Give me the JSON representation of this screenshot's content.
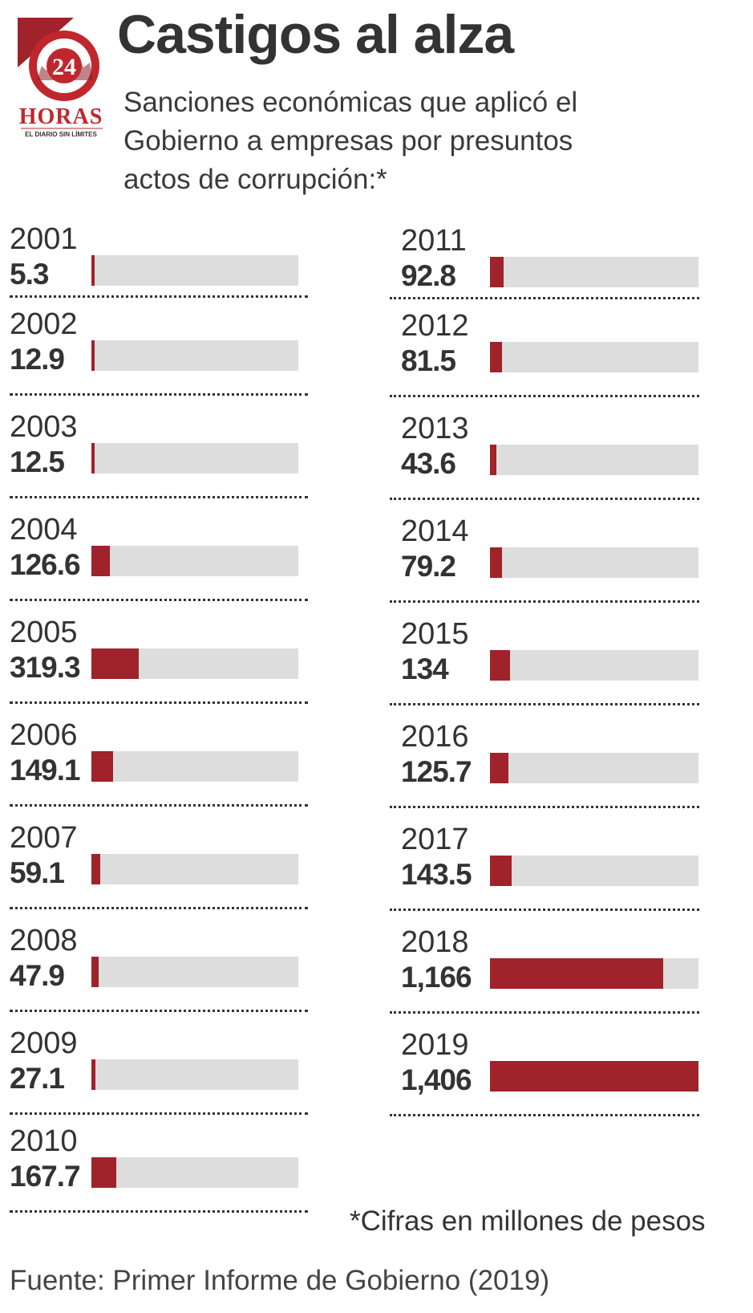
{
  "logo": {
    "number": "24",
    "name": "HORAS",
    "tagline": "EL DIARIO SIN LÍMITES",
    "brand_color": "#c0272d"
  },
  "title": "Castigos al alza",
  "subtitle": "Sanciones económicas que aplicó el Gobierno a empresas por presuntos actos de corrupción:*",
  "colors": {
    "bar": "#a0222a",
    "track": "#dddddd",
    "text": "#333333"
  },
  "chart_data": {
    "type": "bar",
    "orientation": "horizontal",
    "categories": [
      "2001",
      "2002",
      "2003",
      "2004",
      "2005",
      "2006",
      "2007",
      "2008",
      "2009",
      "2010",
      "2011",
      "2012",
      "2013",
      "2014",
      "2015",
      "2016",
      "2017",
      "2018",
      "2019"
    ],
    "values": [
      5.3,
      12.9,
      12.5,
      126.6,
      319.3,
      149.1,
      59.1,
      47.9,
      27.1,
      167.7,
      92.8,
      81.5,
      43.6,
      79.2,
      134,
      125.7,
      143.5,
      1166,
      1406
    ],
    "value_labels": [
      "5.3",
      "12.9",
      "12.5",
      "126.6",
      "319.3",
      "149.1",
      "59.1",
      "47.9",
      "27.1",
      "167.7",
      "92.8",
      "81.5",
      "43.6",
      "79.2",
      "134",
      "125.7",
      "143.5",
      "1,166",
      "1,406"
    ],
    "xlim": [
      0,
      1406
    ]
  },
  "note": "*Cifras en millones de pesos",
  "source": "Fuente: Primer Informe de Gobierno (2019)"
}
